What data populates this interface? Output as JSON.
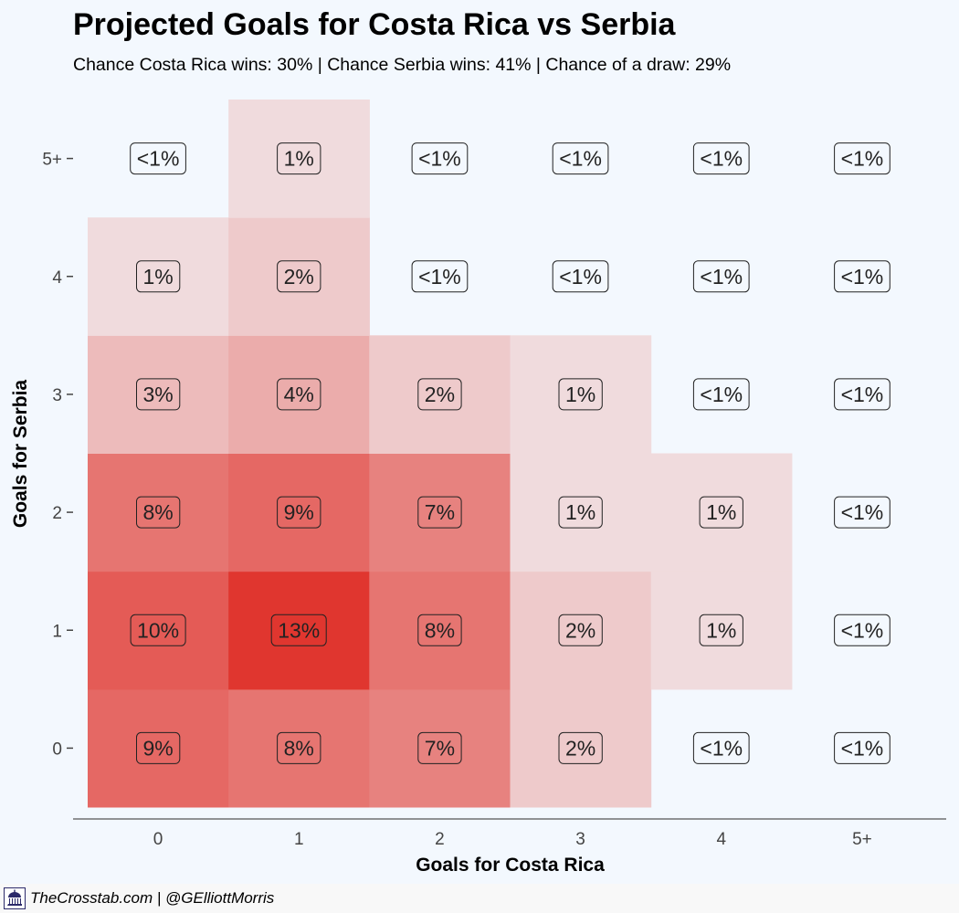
{
  "title": "Projected Goals for Costa Rica vs Serbia",
  "subtitle": "Chance Costa Rica wins: 30% | Chance Serbia wins: 41% | Chance of a draw: 29%",
  "footer": {
    "credit": "TheCrosstab.com | @GElliottMorris"
  },
  "colors": {
    "background": "#f3f8fe",
    "low": "#f2f0f3",
    "high": "#e0362f"
  },
  "chart_data": {
    "type": "heatmap",
    "xlabel": "Goals for Costa Rica",
    "ylabel": "Goals for Serbia",
    "x_categories": [
      "0",
      "1",
      "2",
      "3",
      "4",
      "5+"
    ],
    "y_categories": [
      "0",
      "1",
      "2",
      "3",
      "4",
      "5+"
    ],
    "cells": [
      {
        "x": "0",
        "y": "0",
        "value": 9,
        "label": "9%"
      },
      {
        "x": "1",
        "y": "0",
        "value": 8,
        "label": "8%"
      },
      {
        "x": "2",
        "y": "0",
        "value": 7,
        "label": "7%"
      },
      {
        "x": "3",
        "y": "0",
        "value": 2,
        "label": "2%"
      },
      {
        "x": "4",
        "y": "0",
        "value": 0,
        "label": "<1%"
      },
      {
        "x": "5+",
        "y": "0",
        "value": 0,
        "label": "<1%"
      },
      {
        "x": "0",
        "y": "1",
        "value": 10,
        "label": "10%"
      },
      {
        "x": "1",
        "y": "1",
        "value": 13,
        "label": "13%"
      },
      {
        "x": "2",
        "y": "1",
        "value": 8,
        "label": "8%"
      },
      {
        "x": "3",
        "y": "1",
        "value": 2,
        "label": "2%"
      },
      {
        "x": "4",
        "y": "1",
        "value": 1,
        "label": "1%"
      },
      {
        "x": "5+",
        "y": "1",
        "value": 0,
        "label": "<1%"
      },
      {
        "x": "0",
        "y": "2",
        "value": 8,
        "label": "8%"
      },
      {
        "x": "1",
        "y": "2",
        "value": 9,
        "label": "9%"
      },
      {
        "x": "2",
        "y": "2",
        "value": 7,
        "label": "7%"
      },
      {
        "x": "3",
        "y": "2",
        "value": 1,
        "label": "1%"
      },
      {
        "x": "4",
        "y": "2",
        "value": 1,
        "label": "1%"
      },
      {
        "x": "5+",
        "y": "2",
        "value": 0,
        "label": "<1%"
      },
      {
        "x": "0",
        "y": "3",
        "value": 3,
        "label": "3%"
      },
      {
        "x": "1",
        "y": "3",
        "value": 4,
        "label": "4%"
      },
      {
        "x": "2",
        "y": "3",
        "value": 2,
        "label": "2%"
      },
      {
        "x": "3",
        "y": "3",
        "value": 1,
        "label": "1%"
      },
      {
        "x": "4",
        "y": "3",
        "value": 0,
        "label": "<1%"
      },
      {
        "x": "5+",
        "y": "3",
        "value": 0,
        "label": "<1%"
      },
      {
        "x": "0",
        "y": "4",
        "value": 1,
        "label": "1%"
      },
      {
        "x": "1",
        "y": "4",
        "value": 2,
        "label": "2%"
      },
      {
        "x": "2",
        "y": "4",
        "value": 0,
        "label": "<1%"
      },
      {
        "x": "3",
        "y": "4",
        "value": 0,
        "label": "<1%"
      },
      {
        "x": "4",
        "y": "4",
        "value": 0,
        "label": "<1%"
      },
      {
        "x": "5+",
        "y": "4",
        "value": 0,
        "label": "<1%"
      },
      {
        "x": "0",
        "y": "5+",
        "value": 0,
        "label": "<1%"
      },
      {
        "x": "1",
        "y": "5+",
        "value": 1,
        "label": "1%"
      },
      {
        "x": "2",
        "y": "5+",
        "value": 0,
        "label": "<1%"
      },
      {
        "x": "3",
        "y": "5+",
        "value": 0,
        "label": "<1%"
      },
      {
        "x": "4",
        "y": "5+",
        "value": 0,
        "label": "<1%"
      },
      {
        "x": "5+",
        "y": "5+",
        "value": 0,
        "label": "<1%"
      }
    ]
  }
}
